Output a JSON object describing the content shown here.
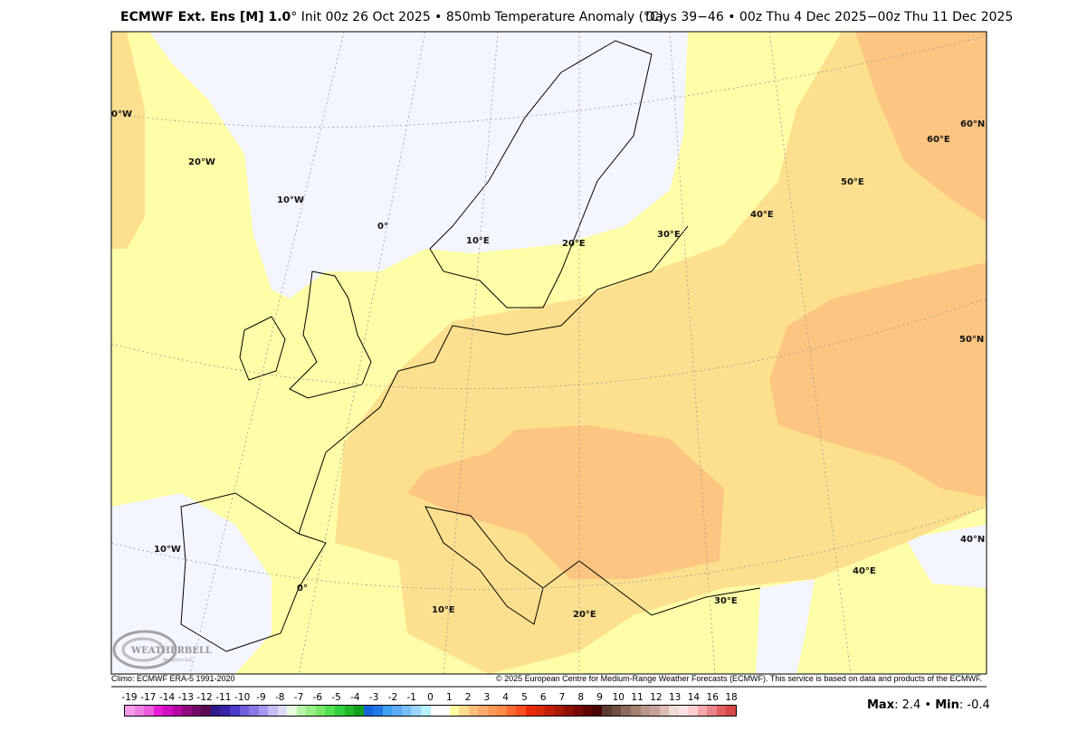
{
  "title": {
    "model": "ECMWF Ext. Ens [M] 1.0",
    "degree": "°",
    "init": " Init 00z 26 Oct 2025 • 850mb Temperature Anomaly (°C)",
    "valid": "Days 39−46 • 00z Thu 4 Dec 2025−00z Thu 11 Dec 2025"
  },
  "footer": {
    "climo": "Climo: ECMWF ERA-5 1991-2020",
    "copyright": "© 2025 European Centre for Medium-Range Weather Forecasts (ECMWF). This service is based on data and products of the ECMWF."
  },
  "logo": {
    "text": "WEATHERBELL",
    "sub": "Analytics LLC"
  },
  "grid_labels": [
    "0°W",
    "20°W",
    "10°W",
    "0°",
    "10°E",
    "20°E",
    "30°E",
    "40°E",
    "50°E",
    "60°E",
    "60°N",
    "50°N",
    "40°N",
    "40°E",
    "30°E",
    "20°E",
    "10°E",
    "0°",
    "10°W"
  ],
  "colorbar": {
    "labels": [
      "-19",
      "-17",
      "-14",
      "-13",
      "-12",
      "-11",
      "-10",
      "-9",
      "-8",
      "-7",
      "-6",
      "-5",
      "-4",
      "-3",
      "-2",
      "-1",
      "0",
      "1",
      "2",
      "3",
      "4",
      "5",
      "6",
      "7",
      "8",
      "9",
      "10",
      "11",
      "12",
      "13",
      "14",
      "16",
      "18"
    ],
    "colors": [
      "#f59ae8",
      "#f07fe2",
      "#eb5cdc",
      "#e81ad6",
      "#d010c0",
      "#b40aa3",
      "#900a80",
      "#750a68",
      "#5c0a50",
      "#2e1a8c",
      "#3a20a8",
      "#4a3cc8",
      "#6e5ed8",
      "#8a78e6",
      "#a696f0",
      "#c4bcf4",
      "#dcdcf8",
      "#e8fce0",
      "#b8f5a8",
      "#98ee88",
      "#78e868",
      "#50e050",
      "#30d040",
      "#20b828",
      "#10a020",
      "#1464d8",
      "#2078e8",
      "#40a0f0",
      "#5aaaf4",
      "#78bcf8",
      "#98d4fc",
      "#b4f0fc",
      "#ffffff",
      "#ffffff",
      "#fcfca0",
      "#fcdc90",
      "#fcc07a",
      "#fcaa6a",
      "#fc9855",
      "#fc8a48",
      "#fc6a30",
      "#fc4e20",
      "#e82a08",
      "#d82808",
      "#c01e06",
      "#a81a06",
      "#901204",
      "#780a04",
      "#600404",
      "#4a0202",
      "#5c3a32",
      "#6e5040",
      "#8a6a5e",
      "#a48070",
      "#b8968a",
      "#c8a09a",
      "#dcbcb2",
      "#ecdcd4",
      "#fce4e4",
      "#fcd0d0",
      "#f4a8ac",
      "#e88488",
      "#e06060",
      "#d84848"
    ]
  },
  "stats": {
    "max_label": "Max",
    "max": ": 2.4 • ",
    "min_label": "Min",
    "min": ": -0.4"
  },
  "anomaly_colors": {
    "near_zero": "#f4f6ff",
    "0_1": "#fffea8",
    "1_2": "#fde08f",
    "2_3": "#fcc582"
  }
}
